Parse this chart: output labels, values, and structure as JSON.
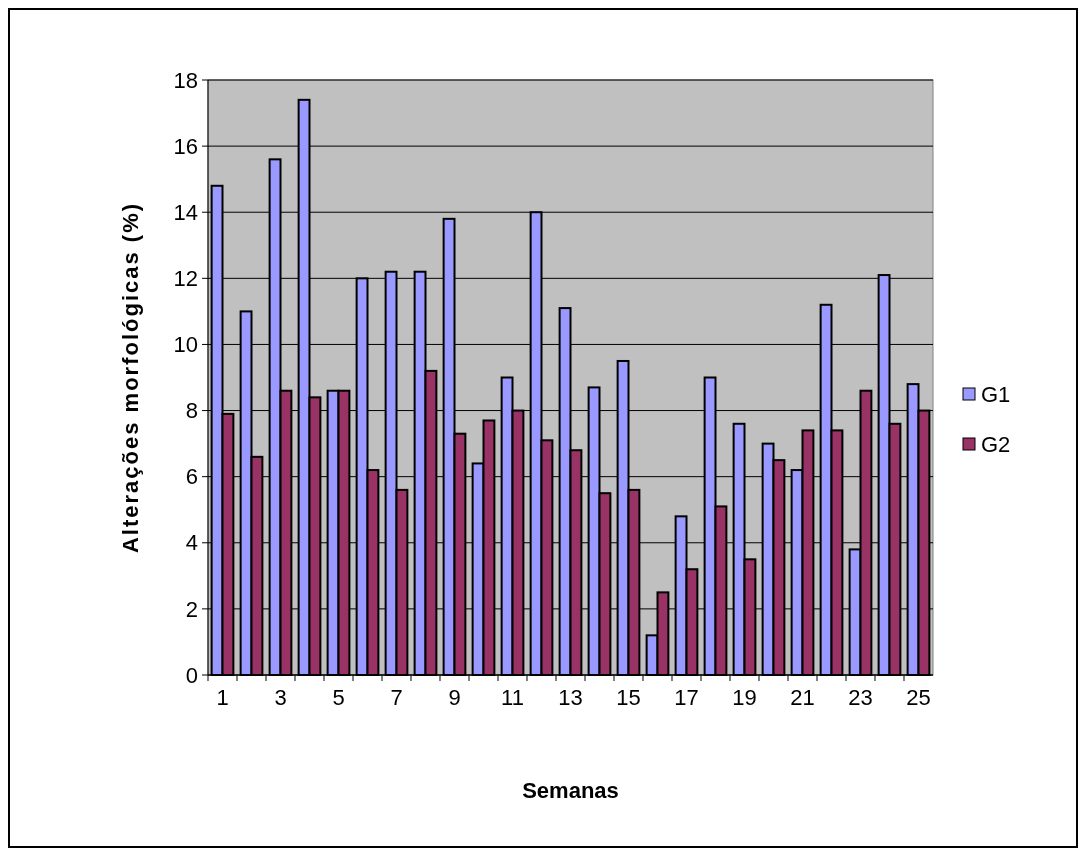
{
  "chart_data": {
    "type": "bar",
    "xlabel": "Semanas",
    "ylabel": "Alterações morfológicas (%)",
    "x": [
      1,
      2,
      3,
      4,
      5,
      6,
      7,
      8,
      9,
      10,
      11,
      12,
      13,
      14,
      15,
      16,
      17,
      18,
      19,
      20,
      21,
      22,
      23,
      24,
      25
    ],
    "xlim": [
      0.5,
      25.5
    ],
    "xticks": [
      1,
      3,
      5,
      7,
      9,
      11,
      13,
      15,
      17,
      19,
      21,
      23,
      25
    ],
    "series": [
      {
        "name": "G1",
        "color": "#9999ff",
        "values": [
          14.8,
          11.0,
          15.6,
          17.4,
          8.6,
          12.0,
          12.2,
          12.2,
          13.8,
          6.4,
          9.0,
          14.0,
          11.1,
          8.7,
          9.5,
          1.2,
          4.8,
          9.0,
          7.6,
          7.0,
          6.2,
          11.2,
          3.8,
          12.1,
          8.8
        ]
      },
      {
        "name": "G2",
        "color": "#993366",
        "values": [
          7.9,
          6.6,
          8.6,
          8.4,
          8.6,
          6.2,
          5.6,
          9.2,
          7.3,
          7.7,
          8.0,
          7.1,
          6.8,
          5.5,
          5.6,
          2.5,
          3.2,
          5.1,
          3.5,
          6.5,
          7.4,
          7.4,
          8.6,
          7.6,
          8.0
        ]
      }
    ],
    "ylim": [
      0,
      18
    ],
    "yticks": [
      0,
      2,
      4,
      6,
      8,
      10,
      12,
      14,
      16,
      18
    ],
    "grid": "y",
    "legend": "right"
  }
}
